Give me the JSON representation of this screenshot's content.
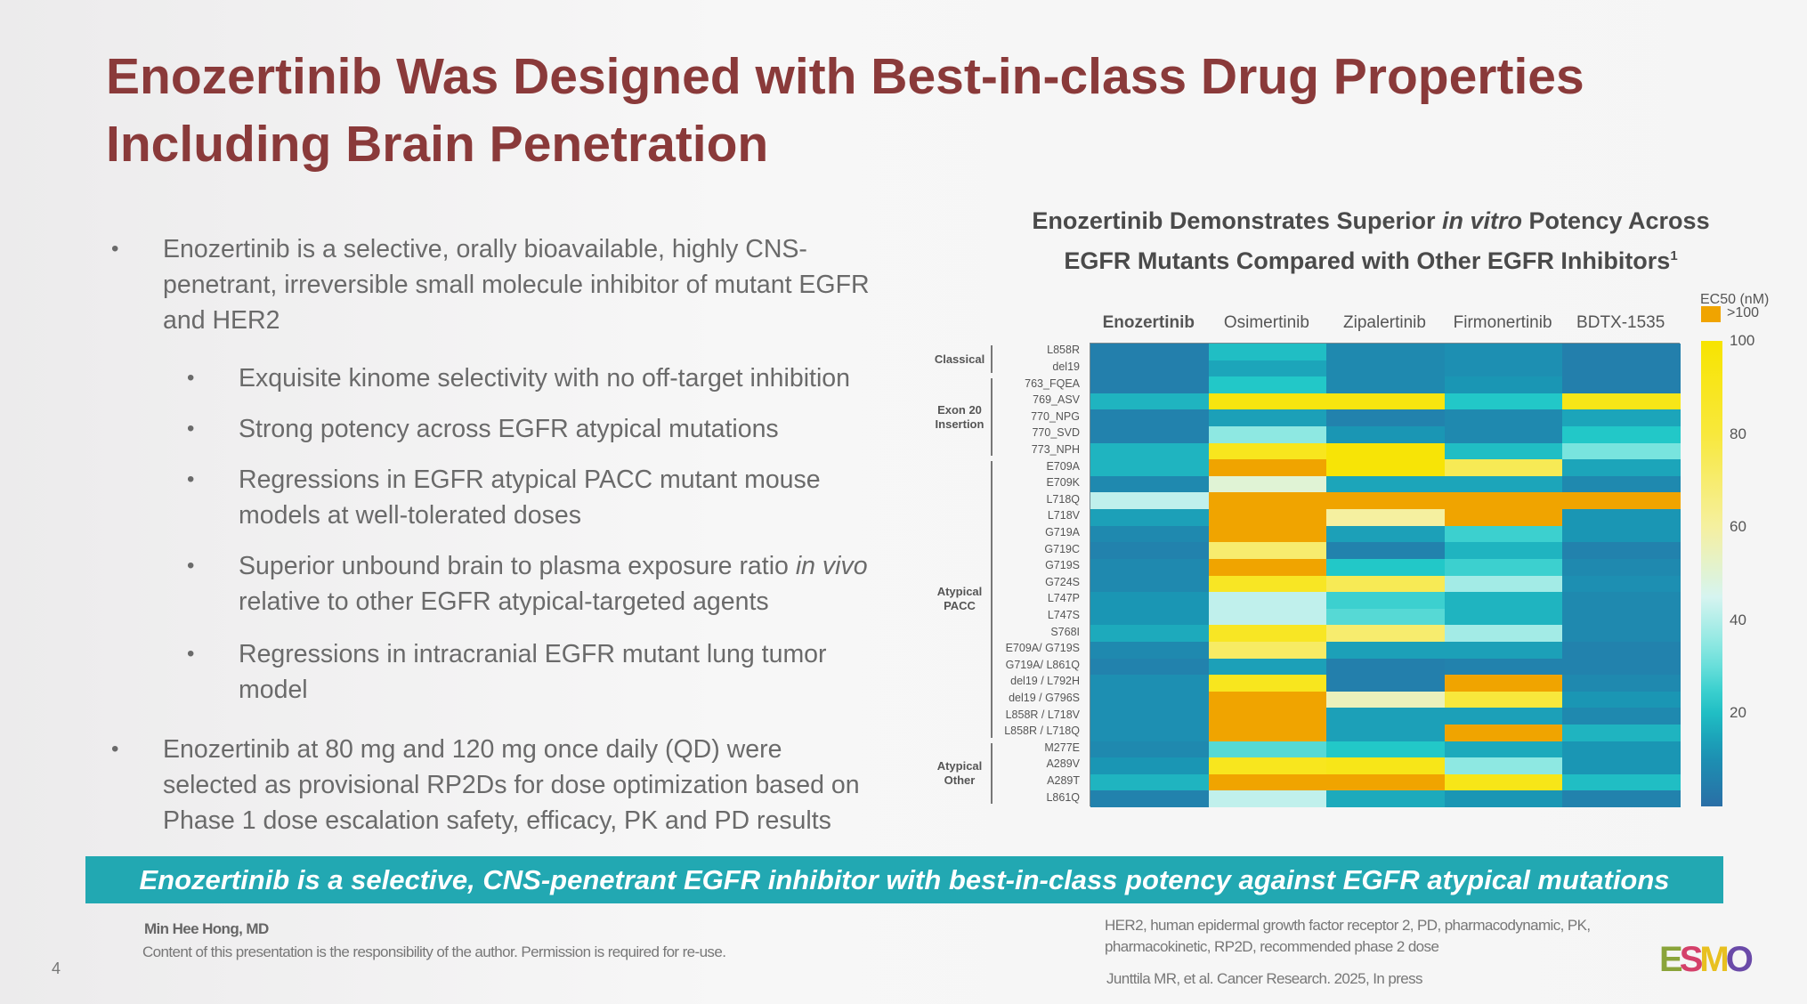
{
  "slide": {
    "title_line1": "Enozertinib Was Designed with Best-in-class Drug Properties",
    "title_line2": "Including Brain Penetration",
    "bullets": [
      {
        "level": 1,
        "text": "Enozertinib is a selective, orally bioavailable, highly CNS-penetrant, irreversible small molecule inhibitor of mutant EGFR and HER2"
      },
      {
        "level": 2,
        "text": "Exquisite kinome selectivity with no off-target inhibition"
      },
      {
        "level": 2,
        "text": "Strong potency across EGFR atypical mutations"
      },
      {
        "level": 2,
        "text": "Regressions in EGFR atypical PACC mutant mouse models at well-tolerated doses"
      },
      {
        "level": 2,
        "text_before": "Superior unbound brain to plasma exposure ratio ",
        "text_italic": "in vivo",
        "text_after": " relative to other EGFR atypical-targeted agents"
      },
      {
        "level": 2,
        "text": "Regressions in intracranial EGFR mutant lung tumor model"
      },
      {
        "level": 1,
        "text": "Enozertinib at 80 mg and 120 mg once daily (QD) were selected as provisional RP2Ds for dose optimization based on Phase 1 dose escalation safety, efficacy, PK and PD results"
      }
    ],
    "banner": "Enozertinib is a selective, CNS-penetrant EGFR inhibitor with best-in-class potency against EGFR atypical mutations",
    "author": "Min Hee Hong, MD",
    "disclaimer": "Content of this presentation is the responsibility of the author. Permission is required for re-use.",
    "page_number": "4",
    "abbreviations_line1": "HER2, human epidermal growth factor receptor 2, PD, pharmacodynamic, PK,",
    "abbreviations_line2": "pharmacokinetic, RP2D, recommended phase 2 dose",
    "reference": "Junttila MR, et al. Cancer Research. 2025, In press",
    "logo_text": "ESMO"
  },
  "chart_data": {
    "type": "heatmap",
    "title_part1": "Enozertinib Demonstrates Superior ",
    "title_italic": "in vitro",
    "title_part2": " Potency Across",
    "title_line2": "EGFR Mutants Compared with Other EGFR Inhibitors",
    "title_superscript": "1",
    "columns": [
      "Enozertinib",
      "Osimertinib",
      "Zipalertinib",
      "Firmonertinib",
      "BDTX-1535"
    ],
    "rows": [
      "L858R",
      "del19",
      "763_FQEA",
      "769_ASV",
      "770_NPG",
      "770_SVD",
      "773_NPH",
      "E709A",
      "E709K",
      "L718Q",
      "L718V",
      "G719A",
      "G719C",
      "G719S",
      "G724S",
      "L747P",
      "L747S",
      "S768I",
      "E709A/ G719S",
      "G719A/ L861Q",
      "del19 / L792H",
      "del19 / G796S",
      "L858R / L718V",
      "L858R / L718Q",
      "M277E",
      "A289V",
      "A289T",
      "L861Q"
    ],
    "groups": [
      {
        "label": "Classical",
        "rows": [
          0,
          1
        ]
      },
      {
        "label": "Exon 20 Insertion",
        "rows": [
          2,
          6
        ]
      },
      {
        "label": "Atypical PACC",
        "rows": [
          7,
          23
        ]
      },
      {
        "label": "Atypical Other",
        "rows": [
          24,
          27
        ]
      }
    ],
    "values": [
      [
        5,
        20,
        8,
        10,
        5
      ],
      [
        5,
        15,
        8,
        10,
        5
      ],
      [
        5,
        22,
        8,
        12,
        5
      ],
      [
        18,
        95,
        95,
        22,
        92
      ],
      [
        6,
        14,
        6,
        8,
        15
      ],
      [
        6,
        35,
        12,
        8,
        22
      ],
      [
        18,
        90,
        98,
        20,
        32
      ],
      [
        18,
        ">100",
        98,
        75,
        15
      ],
      [
        8,
        50,
        15,
        15,
        8
      ],
      [
        42,
        ">100",
        ">100",
        ">100",
        ">100"
      ],
      [
        14,
        ">100",
        60,
        ">100",
        12
      ],
      [
        8,
        ">100",
        14,
        25,
        12
      ],
      [
        6,
        70,
        6,
        18,
        6
      ],
      [
        8,
        ">100",
        22,
        25,
        8
      ],
      [
        8,
        88,
        75,
        38,
        10
      ],
      [
        12,
        42,
        25,
        18,
        8
      ],
      [
        12,
        42,
        28,
        18,
        8
      ],
      [
        16,
        88,
        70,
        38,
        8
      ],
      [
        8,
        72,
        14,
        14,
        6
      ],
      [
        6,
        14,
        5,
        6,
        6
      ],
      [
        10,
        90,
        5,
        ">100",
        8
      ],
      [
        10,
        ">100",
        55,
        80,
        12
      ],
      [
        10,
        ">100",
        14,
        14,
        8
      ],
      [
        10,
        ">100",
        14,
        ">100",
        18
      ],
      [
        8,
        28,
        22,
        16,
        12
      ],
      [
        12,
        90,
        92,
        35,
        12
      ],
      [
        18,
        ">100",
        ">100",
        92,
        20
      ],
      [
        6,
        42,
        16,
        12,
        6
      ]
    ],
    "colorbar_label": "EC50 (nM)",
    "colorbar_range": [
      0,
      100
    ],
    "colorbar_ticks": [
      "20",
      "40",
      "60",
      "80",
      "100"
    ],
    "overflow_label": ">100",
    "colors": {
      "low": "#2a73a8",
      "mid": "#22c7c8",
      "light": "#d5f4f0",
      "high": "#f7e400",
      "overflow": "#f0a400"
    }
  }
}
